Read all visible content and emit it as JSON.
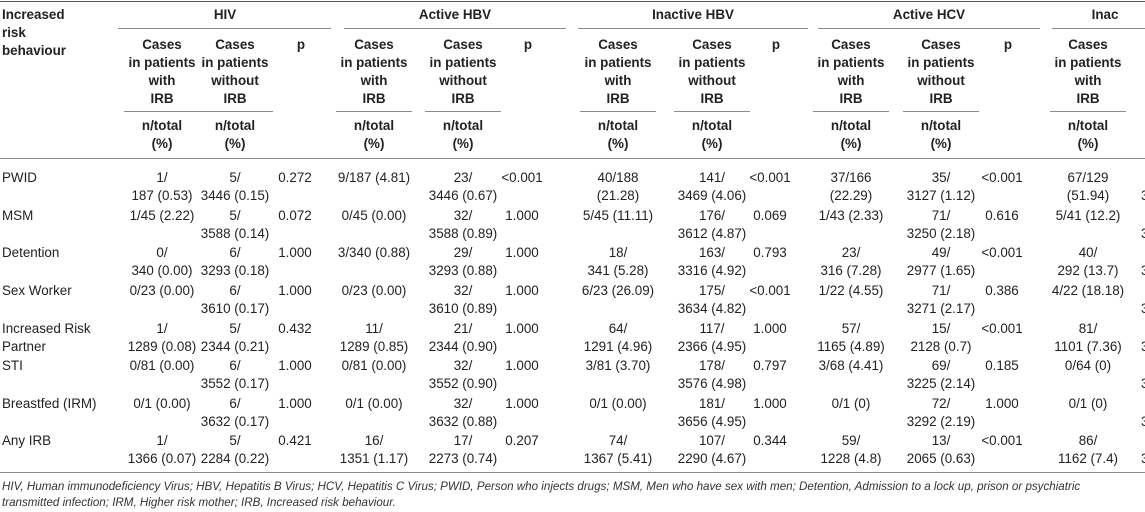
{
  "header": {
    "row_label": "Increased risk behaviour",
    "groups": [
      "HIV",
      "Active HBV",
      "Inactive HBV",
      "Active HCV",
      "Inac"
    ],
    "sub_with": "Cases in patients with IRB",
    "sub_without": "Cases in patients without IRB",
    "sub_p": "p",
    "unit": "n/total (%)"
  },
  "rows": [
    {
      "label": "PWID",
      "cells": [
        [
          "1/",
          "187 (0.53)"
        ],
        [
          "5/",
          "3446 (0.15)"
        ],
        "0.272",
        [
          "9/187 (4.81)"
        ],
        [
          "23/",
          "3446 (0.67)"
        ],
        "<0.001",
        [
          "40/188",
          "(21.28)"
        ],
        [
          "141/",
          "3469 (4.06)"
        ],
        "<0.001",
        [
          "37/166",
          "(22.29)"
        ],
        [
          "35/",
          "3127 (1.12)"
        ],
        "<0.001",
        [
          "67/129",
          "(51.94)"
        ]
      ]
    },
    {
      "label": "MSM",
      "cells": [
        [
          "1/45 (2.22)"
        ],
        [
          "5/",
          "3588 (0.14)"
        ],
        "0.072",
        [
          "0/45 (0.00)"
        ],
        [
          "32/",
          "3588 (0.89)"
        ],
        "1.000",
        [
          "5/45 (11.11)"
        ],
        [
          "176/",
          "3612 (4.87)"
        ],
        "0.069",
        [
          "1/43 (2.33)"
        ],
        [
          "71/",
          "3250 (2.18)"
        ],
        "0.616",
        [
          "5/41 (12.2)"
        ]
      ]
    },
    {
      "label": "Detention",
      "cells": [
        [
          "0/",
          "340 (0.00)"
        ],
        [
          "6/",
          "3293 (0.18)"
        ],
        "1.000",
        [
          "3/340 (0.88)"
        ],
        [
          "29/",
          "3293 (0.88)"
        ],
        "1.000",
        [
          "18/",
          "341 (5.28)"
        ],
        [
          "163/",
          "3316 (4.92)"
        ],
        "0.793",
        [
          "23/",
          "316 (7.28)"
        ],
        [
          "49/",
          "2977 (1.65)"
        ],
        "<0.001",
        [
          "40/",
          "292 (13.7)"
        ]
      ]
    },
    {
      "label": "Sex Worker",
      "cells": [
        [
          "0/23 (0.00)"
        ],
        [
          "6/",
          "3610 (0.17)"
        ],
        "1.000",
        [
          "0/23 (0.00)"
        ],
        [
          "32/",
          "3610 (0.89)"
        ],
        "1.000",
        [
          "6/23 (26.09)"
        ],
        [
          "175/",
          "3634 (4.82)"
        ],
        "<0.001",
        [
          "1/22 (4.55)"
        ],
        [
          "71/",
          "3271 (2.17)"
        ],
        "0.386",
        [
          "4/22 (18.18)"
        ]
      ]
    },
    {
      "label": "Increased Risk Partner",
      "cells": [
        [
          "1/",
          "1289 (0.08)"
        ],
        [
          "5/",
          "2344 (0.21)"
        ],
        "0.432",
        [
          "11/",
          "1289 (0.85)"
        ],
        [
          "21/",
          "2344 (0.90)"
        ],
        "1.000",
        [
          "64/",
          "1291 (4.96)"
        ],
        [
          "117/",
          "2366 (4.95)"
        ],
        "1.000",
        [
          "57/",
          "1165 (4.89)"
        ],
        [
          "15/",
          "2128 (0.7)"
        ],
        "<0.001",
        [
          "81/",
          "1101 (7.36)"
        ]
      ]
    },
    {
      "label": "STI",
      "cells": [
        [
          "0/81 (0.00)"
        ],
        [
          "6/",
          "3552 (0.17)"
        ],
        "1.000",
        [
          "0/81 (0.00)"
        ],
        [
          "32/",
          "3552 (0.90)"
        ],
        "1.000",
        [
          "3/81 (3.70)"
        ],
        [
          "178/",
          "3576 (4.98)"
        ],
        "0.797",
        [
          "3/68 (4.41)"
        ],
        [
          "69/",
          "3225 (2.14)"
        ],
        "0.185",
        [
          "0/64 (0)"
        ]
      ]
    },
    {
      "label": "Breastfed (IRM)",
      "cells": [
        [
          "0/1 (0.00)"
        ],
        [
          "6/",
          "3632 (0.17)"
        ],
        "1.000",
        [
          "0/1 (0.00)"
        ],
        [
          "32/",
          "3632 (0.88)"
        ],
        "1.000",
        [
          "0/1 (0.00)"
        ],
        [
          "181/",
          "3656 (4.95)"
        ],
        "1.000",
        [
          "0/1 (0)"
        ],
        [
          "72/",
          "3292 (2.19)"
        ],
        "1.000",
        [
          "0/1 (0)"
        ]
      ]
    },
    {
      "label": "Any IRB",
      "cells": [
        [
          "1/",
          "1366 (0.07)"
        ],
        [
          "5/",
          "2284 (0.22)"
        ],
        "0.421",
        [
          "16/",
          "1351 (1.17)"
        ],
        [
          "17/",
          "2273 (0.74)"
        ],
        "0.207",
        [
          "74/",
          "1367 (5.41)"
        ],
        [
          "107/",
          "2290 (4.67)"
        ],
        "0.344",
        [
          "59/",
          "1228 (4.8)"
        ],
        [
          "13/",
          "2065 (0.63)"
        ],
        "<0.001",
        [
          "86/",
          "1162 (7.4)"
        ]
      ]
    }
  ],
  "trailing_digit": "3",
  "footnote": {
    "line1": "HIV, Human immunodeficiency Virus; HBV, Hepatitis B Virus; HCV, Hepatitis C Virus; PWID, Person who injects drugs; MSM, Men who have sex with men; Detention, Admission to a lock up, prison or psychiatric",
    "line2": "transmitted infection; IRM, Higher risk mother; IRB, Increased risk behaviour."
  }
}
